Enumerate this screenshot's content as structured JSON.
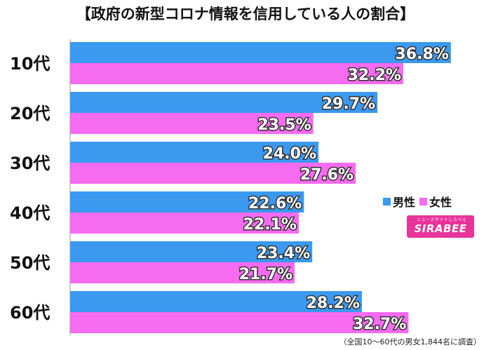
{
  "title": "【政府の新型コロナ情報を信用している人の割合】",
  "chart_data": {
    "type": "bar",
    "orientation": "horizontal",
    "title": "【政府の新型コロナ情報を信用している人の割合】",
    "categories": [
      "10代",
      "20代",
      "30代",
      "40代",
      "50代",
      "60代"
    ],
    "series": [
      {
        "name": "男性",
        "color": "#3b99f0",
        "values": [
          36.8,
          29.7,
          24.0,
          22.6,
          23.4,
          28.2
        ],
        "labels": [
          "36.8%",
          "29.7%",
          "24.0%",
          "22.6%",
          "23.4%",
          "28.2%"
        ]
      },
      {
        "name": "女性",
        "color": "#f76bf0",
        "values": [
          32.2,
          23.5,
          27.6,
          22.1,
          21.7,
          32.7
        ],
        "labels": [
          "32.2%",
          "23.5%",
          "27.6%",
          "22.1%",
          "21.7%",
          "32.7%"
        ]
      }
    ],
    "xlim": [
      0,
      40
    ],
    "grid": false,
    "legend_position": "right"
  },
  "legend": {
    "male": "男性",
    "female": "女性"
  },
  "logo": {
    "text": "SIRABEE",
    "sub": "ニュースサイトしらべぇ"
  },
  "footnote": "（全国10～60代の男女1,844名に調査）",
  "colors": {
    "male": "#3b99f0",
    "female": "#f76bf0",
    "logo": "#e8339a"
  }
}
